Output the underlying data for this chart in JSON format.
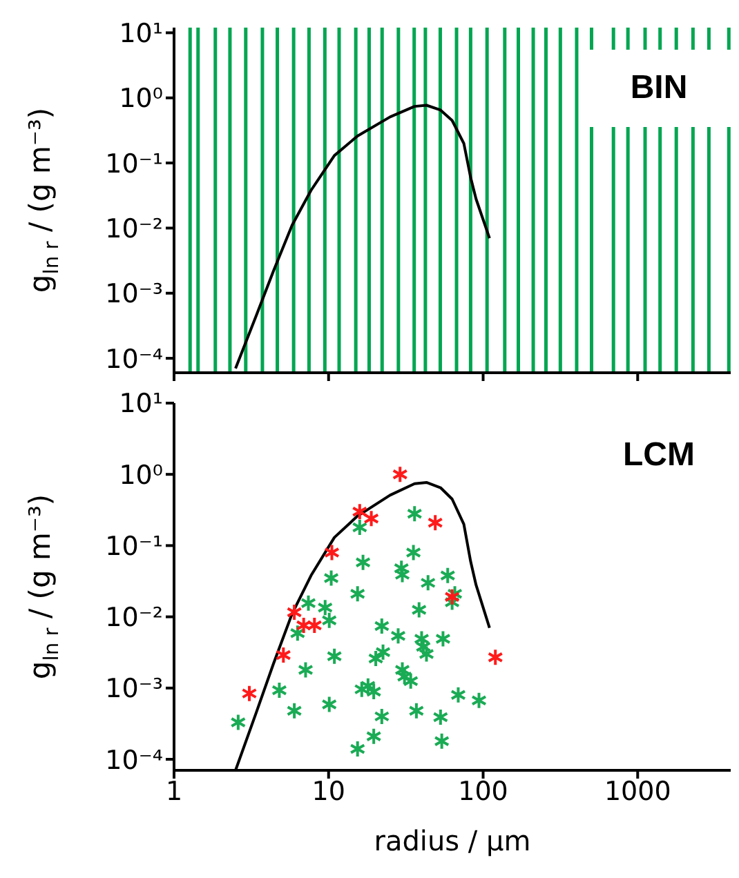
{
  "chart_data": [
    {
      "type": "line",
      "annotations": [
        "BIN"
      ],
      "ylabel": "g$_{ln r}$ / (g m⁻³)",
      "xlim": [
        1,
        4000
      ],
      "ylim": [
        6e-05,
        12
      ],
      "xticks": [
        1,
        10,
        100,
        1000
      ],
      "yticks": [
        {
          "value": 10,
          "label": "10¹"
        },
        {
          "value": 1,
          "label": "10⁰"
        },
        {
          "value": 0.1,
          "label": "10⁻¹"
        },
        {
          "value": 0.01,
          "label": "10⁻²"
        },
        {
          "value": 0.001,
          "label": "10⁻³"
        },
        {
          "value": 0.0001,
          "label": "10⁻⁴"
        }
      ],
      "log": "xy",
      "tick_labels": "y",
      "series": [
        {
          "color": "#000000",
          "x": [
            2.5,
            3.4,
            4.4,
            5.8,
            7.7,
            10.9,
            15.4,
            25,
            36,
            43,
            53,
            63,
            75,
            83,
            90,
            110
          ],
          "values": [
            7e-05,
            0.00045,
            0.0022,
            0.011,
            0.038,
            0.13,
            0.26,
            0.51,
            0.74,
            0.77,
            0.65,
            0.45,
            0.2,
            0.06,
            0.028,
            0.007
          ]
        }
      ],
      "ref_lines": [
        {
          "axis": "x",
          "value": 1.27,
          "color": "#00a651"
        },
        {
          "axis": "x",
          "value": 1.43,
          "color": "#00a651"
        },
        {
          "axis": "x",
          "value": 1.85,
          "color": "#00a651"
        },
        {
          "axis": "x",
          "value": 2.3,
          "color": "#00a651"
        },
        {
          "axis": "x",
          "value": 2.91,
          "color": "#00a651"
        },
        {
          "axis": "x",
          "value": 3.73,
          "color": "#00a651"
        },
        {
          "axis": "x",
          "value": 4.66,
          "color": "#00a651"
        },
        {
          "axis": "x",
          "value": 5.94,
          "color": "#00a651"
        },
        {
          "axis": "x",
          "value": 7.47,
          "color": "#00a651"
        },
        {
          "axis": "x",
          "value": 9.46,
          "color": "#00a651"
        },
        {
          "axis": "x",
          "value": 11.7,
          "color": "#00a651"
        },
        {
          "axis": "x",
          "value": 15,
          "color": "#00a651"
        },
        {
          "axis": "x",
          "value": 18.3,
          "color": "#00a651"
        },
        {
          "axis": "x",
          "value": 22.2,
          "color": "#00a651"
        },
        {
          "axis": "x",
          "value": 28.3,
          "color": "#00a651"
        },
        {
          "axis": "x",
          "value": 35.8,
          "color": "#00a651"
        },
        {
          "axis": "x",
          "value": 42.3,
          "color": "#00a651"
        },
        {
          "axis": "x",
          "value": 52.8,
          "color": "#00a651"
        },
        {
          "axis": "x",
          "value": 67.3,
          "color": "#00a651"
        },
        {
          "axis": "x",
          "value": 83,
          "color": "#00a651"
        },
        {
          "axis": "x",
          "value": 106,
          "color": "#00a651"
        },
        {
          "axis": "x",
          "value": 138,
          "color": "#00a651"
        },
        {
          "axis": "x",
          "value": 169,
          "color": "#00a651"
        },
        {
          "axis": "x",
          "value": 211,
          "color": "#00a651"
        },
        {
          "axis": "x",
          "value": 255,
          "color": "#00a651"
        },
        {
          "axis": "x",
          "value": 316,
          "color": "#00a651"
        },
        {
          "axis": "x",
          "value": 403,
          "color": "#00a651"
        },
        {
          "axis": "x",
          "value": 503,
          "color": "#00a651"
        },
        {
          "axis": "x",
          "value": 697,
          "color": "#00a651"
        },
        {
          "axis": "x",
          "value": 865,
          "color": "#00a651"
        },
        {
          "axis": "x",
          "value": 1117,
          "color": "#00a651"
        },
        {
          "axis": "x",
          "value": 1396,
          "color": "#00a651"
        },
        {
          "axis": "x",
          "value": 1778,
          "color": "#00a651"
        },
        {
          "axis": "x",
          "value": 2280,
          "color": "#00a651"
        },
        {
          "axis": "x",
          "value": 2890,
          "color": "#00a651"
        },
        {
          "axis": "x",
          "value": 3890,
          "color": "#00a651"
        }
      ]
    },
    {
      "type": "scatter",
      "annotations": [
        "LCM"
      ],
      "xlabel": "radius / μm",
      "ylabel": "g$_{ln r}$ / (g m⁻³)",
      "xlim": [
        1,
        4000
      ],
      "ylim": [
        7e-05,
        10
      ],
      "xticks": [
        1,
        10,
        100,
        1000
      ],
      "yticks": [
        {
          "value": 10,
          "label": "10¹"
        },
        {
          "value": 1,
          "label": "10⁰"
        },
        {
          "value": 0.1,
          "label": "10⁻¹"
        },
        {
          "value": 0.01,
          "label": "10⁻²"
        },
        {
          "value": 0.001,
          "label": "10⁻³"
        },
        {
          "value": 0.0001,
          "label": "10⁻⁴"
        }
      ],
      "log": "xy",
      "series": [
        {
          "type": "line",
          "color": "#000000",
          "x": [
            2.5,
            3.4,
            4.4,
            5.8,
            7.7,
            10.9,
            15.4,
            25,
            36,
            43,
            53,
            63,
            75,
            83,
            90,
            110
          ],
          "values": [
            7e-05,
            0.00045,
            0.0022,
            0.011,
            0.038,
            0.13,
            0.26,
            0.51,
            0.74,
            0.77,
            0.65,
            0.45,
            0.2,
            0.06,
            0.028,
            0.007
          ]
        },
        {
          "color": "#1aab55",
          "marker": "cross",
          "x": [
            2.6,
            4.8,
            6.0,
            6.3,
            7.1,
            7.4,
            9.5,
            10.1,
            10.4,
            10.1,
            10.9,
            15.4,
            15.4,
            15.9,
            16.7,
            16.4,
            18,
            19.6,
            19.6,
            20.2,
            22.1,
            22.1,
            22.5,
            28.2,
            29.6,
            30,
            30,
            31,
            34,
            35.4,
            36,
            38.5,
            37,
            40,
            41,
            43,
            44,
            55,
            53,
            54,
            59,
            65.6,
            63,
            69,
            94
          ],
          "values": [
            0.00033,
            0.00093,
            0.00048,
            0.0059,
            0.0018,
            0.0156,
            0.0135,
            0.0089,
            0.035,
            0.00059,
            0.0028,
            0.021,
            0.00014,
            0.18,
            0.058,
            0.00096,
            0.00107,
            0.00089,
            0.00021,
            0.0026,
            0.0074,
            0.0004,
            0.0032,
            0.0054,
            0.048,
            0.039,
            0.0018,
            0.00145,
            0.00125,
            0.08,
            0.28,
            0.0125,
            0.00048,
            0.0049,
            0.0038,
            0.003,
            0.03,
            0.0049,
            0.00039,
            0.00018,
            0.038,
            0.021,
            0.016,
            0.0008,
            0.00067
          ]
        },
        {
          "color": "#ff1a1a",
          "marker": "cross",
          "x": [
            3.07,
            5.1,
            6.0,
            6.9,
            8.1,
            10.5,
            15.9,
            18.9,
            29,
            49,
            63,
            120
          ],
          "values": [
            0.00084,
            0.0029,
            0.0116,
            0.0076,
            0.0076,
            0.08,
            0.3,
            0.24,
            1.0,
            0.21,
            0.019,
            0.0027
          ]
        }
      ]
    }
  ]
}
